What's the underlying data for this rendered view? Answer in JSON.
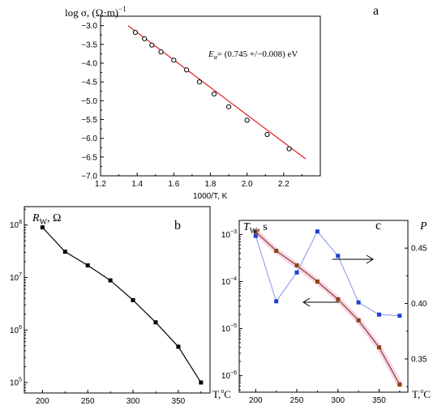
{
  "chart_data": [
    {
      "panel": "a",
      "type": "scatter",
      "ylabel": "log σ, (Ω·m)⁻¹",
      "xlabel": "1000/T, K",
      "annotation": "Ea = (0.745 +/−0.008) eV",
      "xlim": [
        1.2,
        2.4
      ],
      "ylim": [
        -7.0,
        -2.75
      ],
      "xticks": [
        "1.2",
        "1.4",
        "1.6",
        "1.8",
        "2.0",
        "2.2"
      ],
      "yticks": [
        "-3.0",
        "-3.5",
        "-4.0",
        "-4.5",
        "-5.0",
        "-5.5",
        "-6.0",
        "-6.5",
        "-7.0"
      ],
      "points": [
        [
          1.39,
          -3.18
        ],
        [
          1.44,
          -3.35
        ],
        [
          1.48,
          -3.52
        ],
        [
          1.53,
          -3.7
        ],
        [
          1.6,
          -3.92
        ],
        [
          1.67,
          -4.18
        ],
        [
          1.74,
          -4.5
        ],
        [
          1.82,
          -4.82
        ],
        [
          1.9,
          -5.16
        ],
        [
          2.0,
          -5.52
        ],
        [
          2.11,
          -5.9
        ],
        [
          2.23,
          -6.28
        ]
      ],
      "fit_line": [
        [
          1.35,
          -3.0
        ],
        [
          2.32,
          -6.55
        ]
      ],
      "colors": {
        "points": "#000000",
        "fit": "#e02020"
      }
    },
    {
      "panel": "b",
      "type": "line",
      "ylabel": "RW, Ω",
      "xlabel": "T, °C",
      "yscale": "log",
      "xlim": [
        180,
        385
      ],
      "ylim_exp": [
        4.8,
        8.35
      ],
      "xticks": [
        "200",
        "250",
        "300",
        "350"
      ],
      "yticks": [
        "10^8",
        "10^7",
        "10^6",
        "10^5"
      ],
      "x": [
        200,
        225,
        250,
        275,
        300,
        325,
        350,
        375
      ],
      "y": [
        90000000,
        31000000,
        17000000,
        8800000,
        3700000,
        1400000,
        480000,
        100000
      ],
      "colors": {
        "line": "#000000"
      }
    },
    {
      "panel": "c",
      "type": "line",
      "ylabel": "TW, s",
      "y2label": "P",
      "xlabel": "T, °C",
      "yscale": "log",
      "xlim": [
        180,
        385
      ],
      "ylim_exp": [
        -6.35,
        -2.7
      ],
      "y2lim": [
        0.32,
        0.475
      ],
      "xticks": [
        "200",
        "250",
        "300",
        "350"
      ],
      "yticks": [
        "10^-3",
        "10^-4",
        "10^-5",
        "10^-6"
      ],
      "y2ticks": [
        "0.45",
        "0.40",
        "0.35"
      ],
      "series": [
        {
          "axis": "left",
          "x": [
            200,
            225,
            250,
            275,
            300,
            325,
            350,
            375
          ],
          "y": [
            0.00115,
            0.00045,
            0.00022,
            0.0001,
            4.2e-05,
            1.5e-05,
            4e-06,
            6.5e-07
          ],
          "color": "#8b4513"
        },
        {
          "axis": "right",
          "x": [
            200,
            225,
            250,
            275,
            300,
            325,
            350,
            375
          ],
          "y": [
            0.461,
            0.402,
            0.428,
            0.465,
            0.443,
            0.401,
            0.39,
            0.389
          ],
          "color": "#1f3fd6"
        }
      ]
    }
  ],
  "panels": {
    "a": {
      "letter": "a",
      "ylabel_main": "log σ, (Ω·m)",
      "ylabel_sup": "−1",
      "xlabel": "1000/T, K",
      "annotation_E": "E",
      "annotation_sub": "a",
      "annotation_rest": "= (0.745 +/−0.008) eV"
    },
    "b": {
      "letter": "b",
      "ylabel_R": "R",
      "ylabel_sub": "W",
      "ylabel_rest": ", Ω",
      "xlabel": "T,",
      "xlabel_unit": "C",
      "xlabel_deg": "o"
    },
    "c": {
      "letter": "c",
      "ylabel_T": "T",
      "ylabel_sub": "W",
      "ylabel_rest": ", s",
      "y2label": "P",
      "xlabel": "T,",
      "xlabel_unit": "C",
      "xlabel_deg": "o"
    }
  }
}
